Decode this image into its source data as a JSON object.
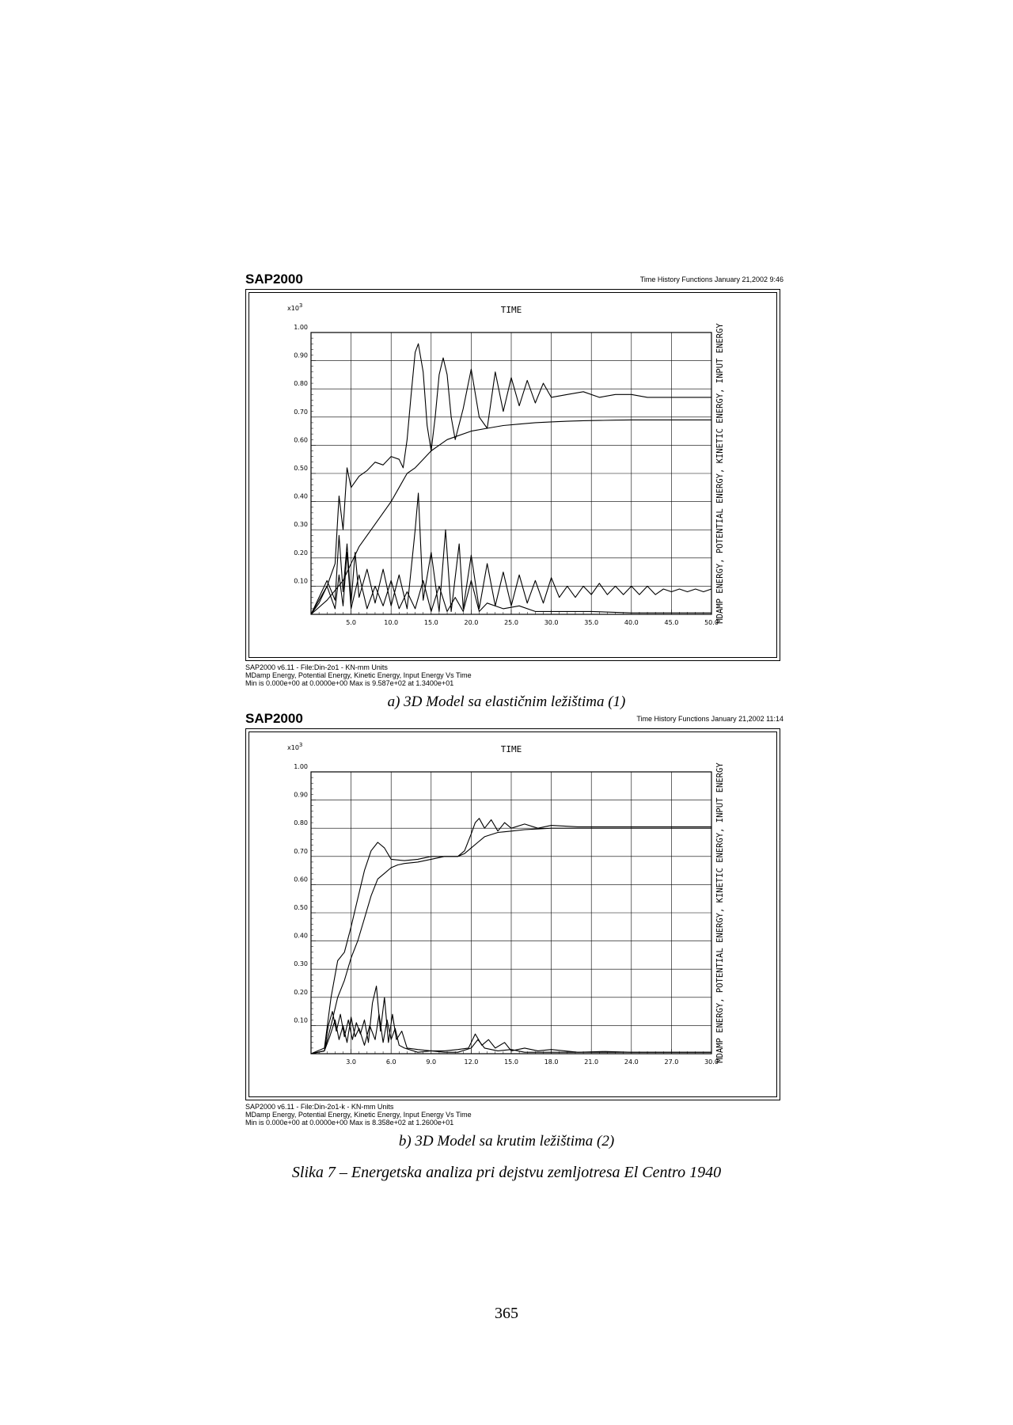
{
  "panels": [
    {
      "brand": "SAP2000",
      "header_info": "Time History Functions  January 21,2002  9:46",
      "footer_lines": [
        "SAP2000 v6.11 - File:Din-2o1 - KN-mm Units",
        "MDamp Energy, Potential Energy, Kinetic Energy, Input Energy  Vs  Time",
        "Min is 0.000e+00 at 0.0000e+00  Max is 9.587e+02 at 1.3400e+01"
      ],
      "caption": "a)     3D Model sa elastičnim ležištima (1)"
    },
    {
      "brand": "SAP2000",
      "header_info": "Time History Functions  January 21,2002  11:14",
      "footer_lines": [
        "SAP2000 v6.11 - File:Din-2o1-k - KN-mm Units",
        "MDamp Energy, Potential Energy, Kinetic Energy, Input Energy  Vs  Time",
        "Min is 0.000e+00 at 0.0000e+00  Max is 8.358e+02 at 1.2600e+01"
      ],
      "caption": "b)     3D Model sa krutim ležištima (2)"
    }
  ],
  "figure_caption": "Slika 7 – Energetska analiza pri dejstvu zemljotresa El Centro 1940",
  "page_number": "365",
  "chart_data": [
    {
      "type": "line",
      "title": "TIME",
      "y_multiplier_label": "x10",
      "y_multiplier_exponent": "3",
      "ylabel": "MDAMP ENERGY, POTENTIAL ENERGY, KINETIC ENERGY, INPUT ENERGY",
      "xlim": [
        0,
        50
      ],
      "ylim": [
        0,
        1.0
      ],
      "x_ticks": [
        "5.0",
        "10.0",
        "15.0",
        "20.0",
        "25.0",
        "30.0",
        "35.0",
        "40.0",
        "45.0",
        "50.0"
      ],
      "x_tick_values": [
        5,
        10,
        15,
        20,
        25,
        30,
        35,
        40,
        45,
        50
      ],
      "y_ticks": [
        "0.10",
        "0.20",
        "0.30",
        "0.40",
        "0.50",
        "0.60",
        "0.70",
        "0.80",
        "0.90",
        "1.00"
      ],
      "y_tick_values": [
        0.1,
        0.2,
        0.3,
        0.4,
        0.5,
        0.6,
        0.7,
        0.8,
        0.9,
        1.0
      ],
      "grid": true,
      "series": [
        {
          "x": [
            0,
            1,
            2,
            3,
            3.5,
            4,
            4.5,
            5,
            6,
            7,
            8,
            9,
            10,
            11,
            11.5,
            12,
            12.5,
            13,
            13.4,
            14,
            14.5,
            15,
            15.5,
            16,
            16.5,
            17,
            17.5,
            18,
            19,
            20,
            21,
            22,
            23,
            24,
            25,
            26,
            27,
            28,
            29,
            30,
            32,
            34,
            36,
            38,
            40,
            42,
            44,
            46,
            48,
            50
          ],
          "y": [
            0,
            0.04,
            0.1,
            0.18,
            0.42,
            0.3,
            0.52,
            0.45,
            0.49,
            0.51,
            0.54,
            0.53,
            0.56,
            0.55,
            0.52,
            0.62,
            0.78,
            0.93,
            0.96,
            0.86,
            0.67,
            0.58,
            0.7,
            0.85,
            0.91,
            0.85,
            0.7,
            0.62,
            0.73,
            0.87,
            0.7,
            0.66,
            0.86,
            0.72,
            0.84,
            0.74,
            0.83,
            0.75,
            0.82,
            0.77,
            0.78,
            0.79,
            0.77,
            0.78,
            0.78,
            0.77,
            0.77,
            0.77,
            0.77,
            0.77
          ]
        },
        {
          "x": [
            0,
            2,
            4,
            5,
            6,
            8,
            10,
            11,
            12,
            13,
            14,
            15,
            16,
            17,
            18,
            20,
            22,
            24,
            26,
            28,
            30,
            32,
            34,
            36,
            38,
            40,
            45,
            50
          ],
          "y": [
            0,
            0.05,
            0.12,
            0.18,
            0.24,
            0.32,
            0.4,
            0.45,
            0.5,
            0.52,
            0.55,
            0.58,
            0.6,
            0.62,
            0.63,
            0.65,
            0.66,
            0.67,
            0.675,
            0.68,
            0.683,
            0.685,
            0.687,
            0.688,
            0.689,
            0.69,
            0.69,
            0.69
          ]
        },
        {
          "x": [
            0,
            1,
            2,
            3,
            3.5,
            4,
            4.5,
            5,
            5.5,
            6,
            7,
            8,
            9,
            10,
            11,
            12,
            13,
            13.4,
            14,
            15,
            16,
            16.8,
            17.5,
            18.5,
            19,
            20,
            21,
            22,
            23,
            24,
            25,
            26,
            27,
            28,
            29,
            30,
            31,
            32,
            33,
            34,
            35,
            36,
            37,
            38,
            39,
            40,
            41,
            42,
            43,
            44,
            45,
            46,
            47,
            48,
            49,
            50
          ],
          "y": [
            0,
            0.06,
            0.12,
            0.05,
            0.28,
            0.08,
            0.25,
            0.04,
            0.22,
            0.06,
            0.16,
            0.04,
            0.16,
            0.03,
            0.14,
            0.02,
            0.3,
            0.43,
            0.05,
            0.22,
            0.01,
            0.3,
            0.01,
            0.25,
            0.02,
            0.21,
            0.02,
            0.18,
            0.03,
            0.15,
            0.03,
            0.14,
            0.04,
            0.12,
            0.04,
            0.13,
            0.06,
            0.1,
            0.06,
            0.1,
            0.07,
            0.11,
            0.07,
            0.1,
            0.07,
            0.1,
            0.07,
            0.1,
            0.07,
            0.09,
            0.08,
            0.09,
            0.08,
            0.09,
            0.08,
            0.09
          ]
        },
        {
          "x": [
            0,
            1,
            2,
            3,
            3.5,
            4,
            4.5,
            5,
            6,
            7,
            8,
            9,
            10,
            11,
            12,
            13,
            14,
            15,
            16,
            17,
            18,
            19,
            20,
            21,
            22,
            24,
            26,
            28,
            30,
            35,
            40,
            45,
            50
          ],
          "y": [
            0,
            0.05,
            0.1,
            0.02,
            0.14,
            0.03,
            0.22,
            0.02,
            0.14,
            0.02,
            0.1,
            0.03,
            0.12,
            0.02,
            0.08,
            0.02,
            0.12,
            0.01,
            0.1,
            0.01,
            0.06,
            0.01,
            0.12,
            0.01,
            0.04,
            0.02,
            0.03,
            0.01,
            0.01,
            0.01,
            0.005,
            0.005,
            0.005
          ]
        }
      ]
    },
    {
      "type": "line",
      "title": "TIME",
      "y_multiplier_label": "x10",
      "y_multiplier_exponent": "3",
      "ylabel": "MDAMP ENERGY, POTENTIAL ENERGY, KINETIC ENERGY, INPUT ENERGY",
      "xlim": [
        0,
        30
      ],
      "ylim": [
        0,
        1.0
      ],
      "x_ticks": [
        "3.0",
        "6.0",
        "9.0",
        "12.0",
        "15.0",
        "18.0",
        "21.0",
        "24.0",
        "27.0",
        "30.0"
      ],
      "x_tick_values": [
        3,
        6,
        9,
        12,
        15,
        18,
        21,
        24,
        27,
        30
      ],
      "y_ticks": [
        "0.10",
        "0.20",
        "0.30",
        "0.40",
        "0.50",
        "0.60",
        "0.70",
        "0.80",
        "0.90",
        "1.00"
      ],
      "y_tick_values": [
        0.1,
        0.2,
        0.3,
        0.4,
        0.5,
        0.6,
        0.7,
        0.8,
        0.9,
        1.0
      ],
      "grid": true,
      "series": [
        {
          "x": [
            0,
            1,
            1.5,
            2,
            2.5,
            3,
            3.5,
            4,
            4.5,
            5,
            5.5,
            6,
            7,
            8,
            9,
            10,
            11,
            11.5,
            12,
            12.3,
            12.6,
            13,
            13.5,
            14,
            14.5,
            15,
            16,
            17,
            18,
            20,
            22,
            24,
            26,
            28,
            30
          ],
          "y": [
            0,
            0.02,
            0.2,
            0.33,
            0.36,
            0.45,
            0.55,
            0.65,
            0.72,
            0.75,
            0.73,
            0.69,
            0.685,
            0.69,
            0.7,
            0.7,
            0.7,
            0.72,
            0.78,
            0.82,
            0.835,
            0.8,
            0.83,
            0.79,
            0.82,
            0.8,
            0.815,
            0.8,
            0.81,
            0.805,
            0.805,
            0.805,
            0.805,
            0.805,
            0.805
          ]
        },
        {
          "x": [
            0,
            1,
            1.5,
            2,
            2.5,
            3,
            3.5,
            4,
            4.5,
            5,
            5.5,
            6,
            6.5,
            7,
            8,
            9,
            10,
            11,
            11.5,
            12,
            12.5,
            13,
            14,
            15,
            16,
            18,
            20,
            22,
            24,
            26,
            28,
            30
          ],
          "y": [
            0,
            0.01,
            0.1,
            0.2,
            0.26,
            0.34,
            0.4,
            0.48,
            0.56,
            0.62,
            0.64,
            0.66,
            0.67,
            0.675,
            0.68,
            0.69,
            0.7,
            0.7,
            0.71,
            0.73,
            0.75,
            0.77,
            0.785,
            0.79,
            0.795,
            0.8,
            0.8,
            0.8,
            0.8,
            0.8,
            0.8,
            0.8
          ]
        },
        {
          "x": [
            0,
            1,
            1.3,
            1.6,
            1.9,
            2.2,
            2.5,
            2.8,
            3.1,
            3.4,
            3.7,
            4.0,
            4.3,
            4.6,
            4.9,
            5.2,
            5.5,
            5.8,
            6.1,
            6.4,
            6.8,
            7.2,
            8,
            9,
            10,
            11,
            11.8,
            12.3,
            12.8,
            13.3,
            13.8,
            14.5,
            15,
            16,
            17,
            18,
            20,
            22,
            24,
            26,
            28,
            30
          ],
          "y": [
            0,
            0.01,
            0.1,
            0.15,
            0.08,
            0.14,
            0.06,
            0.12,
            0.05,
            0.11,
            0.07,
            0.12,
            0.04,
            0.18,
            0.24,
            0.08,
            0.2,
            0.04,
            0.14,
            0.05,
            0.08,
            0.02,
            0.015,
            0.01,
            0.01,
            0.015,
            0.02,
            0.07,
            0.03,
            0.05,
            0.02,
            0.04,
            0.01,
            0.02,
            0.01,
            0.015,
            0.005,
            0.008,
            0.005,
            0.005,
            0.005,
            0.005
          ]
        },
        {
          "x": [
            0,
            1,
            1.4,
            1.8,
            2.1,
            2.4,
            2.7,
            3.0,
            3.3,
            3.6,
            4.0,
            4.4,
            4.8,
            5.1,
            5.4,
            5.7,
            6.0,
            6.3,
            6.6,
            7,
            8,
            9,
            10,
            11,
            12,
            12.5,
            13,
            14,
            15,
            16,
            18,
            20,
            25,
            30
          ],
          "y": [
            0,
            0.01,
            0.06,
            0.12,
            0.05,
            0.1,
            0.04,
            0.13,
            0.06,
            0.09,
            0.03,
            0.1,
            0.05,
            0.14,
            0.04,
            0.12,
            0.05,
            0.09,
            0.03,
            0.02,
            0.005,
            0.01,
            0.005,
            0.005,
            0.02,
            0.05,
            0.02,
            0.01,
            0.015,
            0.005,
            0.005,
            0.005,
            0.005,
            0.005
          ]
        }
      ]
    }
  ]
}
